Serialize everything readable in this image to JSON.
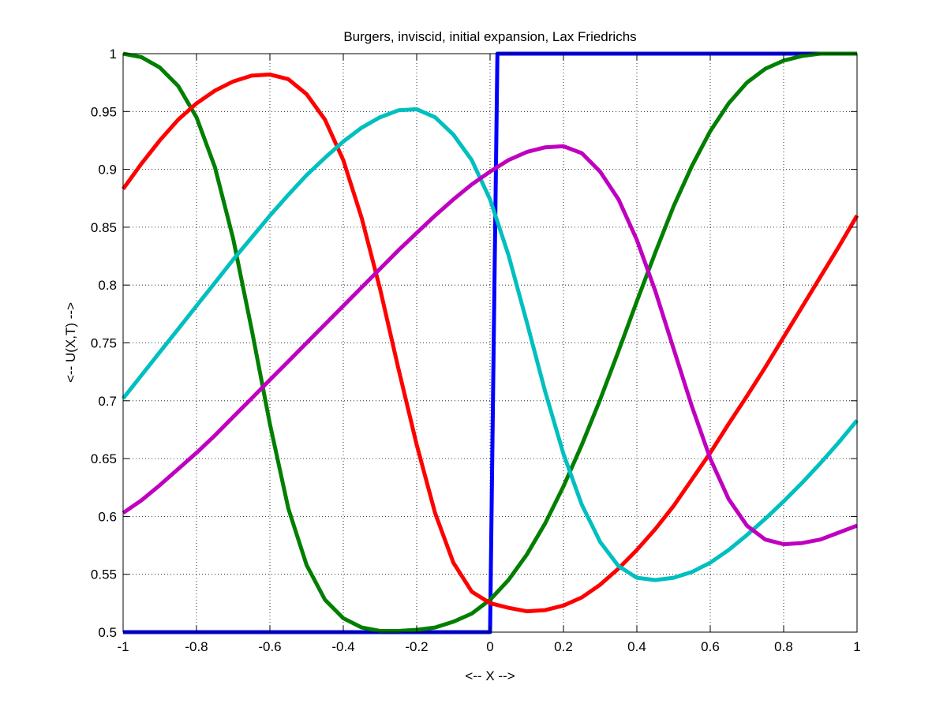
{
  "chart_data": {
    "type": "line",
    "title": "Burgers, inviscid, initial expansion, Lax Friedrichs",
    "xlabel": "<-- X -->",
    "ylabel": "<-- U(X,T) -->",
    "xlim": [
      -1,
      1
    ],
    "ylim": [
      0.5,
      1
    ],
    "xticks": [
      -1,
      -0.8,
      -0.6,
      -0.4,
      -0.2,
      0,
      0.2,
      0.4,
      0.6,
      0.8,
      1
    ],
    "xtick_labels": [
      "-1",
      "-0.8",
      "-0.6",
      "-0.4",
      "-0.2",
      "0",
      "0.2",
      "0.4",
      "0.6",
      "0.8",
      "1"
    ],
    "yticks": [
      0.5,
      0.55,
      0.6,
      0.65,
      0.7,
      0.75,
      0.8,
      0.85,
      0.9,
      0.95,
      1
    ],
    "ytick_labels": [
      "0.5",
      "0.55",
      "0.6",
      "0.65",
      "0.7",
      "0.75",
      "0.8",
      "0.85",
      "0.9",
      "0.95",
      "1"
    ],
    "grid": true,
    "series": [
      {
        "color": "#0000ff",
        "x": [
          -1,
          0,
          0.01,
          0.02,
          1
        ],
        "y": [
          0.5,
          0.5,
          0.75,
          1,
          1
        ]
      },
      {
        "color": "#007f00",
        "x": [
          -1,
          -0.95,
          -0.9,
          -0.85,
          -0.8,
          -0.75,
          -0.7,
          -0.65,
          -0.6,
          -0.55,
          -0.5,
          -0.45,
          -0.4,
          -0.35,
          -0.3,
          -0.25,
          -0.2,
          -0.15,
          -0.1,
          -0.05,
          0,
          0.05,
          0.1,
          0.15,
          0.2,
          0.25,
          0.3,
          0.35,
          0.4,
          0.45,
          0.5,
          0.55,
          0.6,
          0.65,
          0.7,
          0.75,
          0.8,
          0.85,
          0.9,
          0.95,
          1
        ],
        "y": [
          1.0,
          0.997,
          0.988,
          0.972,
          0.945,
          0.902,
          0.84,
          0.762,
          0.68,
          0.607,
          0.558,
          0.528,
          0.512,
          0.504,
          0.501,
          0.501,
          0.502,
          0.504,
          0.509,
          0.516,
          0.528,
          0.545,
          0.567,
          0.594,
          0.626,
          0.662,
          0.701,
          0.743,
          0.786,
          0.828,
          0.868,
          0.903,
          0.933,
          0.957,
          0.975,
          0.987,
          0.994,
          0.998,
          1.0,
          1.0,
          1.0
        ]
      },
      {
        "color": "#ff0000",
        "x": [
          -1,
          -0.95,
          -0.9,
          -0.85,
          -0.8,
          -0.75,
          -0.7,
          -0.65,
          -0.6,
          -0.55,
          -0.5,
          -0.45,
          -0.4,
          -0.35,
          -0.3,
          -0.25,
          -0.2,
          -0.15,
          -0.1,
          -0.05,
          0,
          0.05,
          0.1,
          0.15,
          0.2,
          0.25,
          0.3,
          0.35,
          0.4,
          0.45,
          0.5,
          0.55,
          0.6,
          0.65,
          0.7,
          0.75,
          0.8,
          0.85,
          0.9,
          0.95,
          1
        ],
        "y": [
          0.883,
          0.905,
          0.925,
          0.943,
          0.957,
          0.968,
          0.976,
          0.981,
          0.982,
          0.978,
          0.965,
          0.943,
          0.908,
          0.858,
          0.797,
          0.728,
          0.662,
          0.603,
          0.56,
          0.535,
          0.525,
          0.521,
          0.518,
          0.519,
          0.523,
          0.53,
          0.541,
          0.555,
          0.571,
          0.589,
          0.609,
          0.632,
          0.655,
          0.68,
          0.704,
          0.729,
          0.755,
          0.781,
          0.807,
          0.833,
          0.86
        ]
      },
      {
        "color": "#00bfbf",
        "x": [
          -1,
          -0.95,
          -0.9,
          -0.85,
          -0.8,
          -0.75,
          -0.7,
          -0.65,
          -0.6,
          -0.55,
          -0.5,
          -0.45,
          -0.4,
          -0.35,
          -0.3,
          -0.25,
          -0.2,
          -0.15,
          -0.1,
          -0.05,
          0,
          0.05,
          0.1,
          0.15,
          0.2,
          0.25,
          0.3,
          0.35,
          0.4,
          0.45,
          0.5,
          0.55,
          0.6,
          0.65,
          0.7,
          0.75,
          0.8,
          0.85,
          0.9,
          0.95,
          1
        ],
        "y": [
          0.702,
          0.722,
          0.742,
          0.762,
          0.782,
          0.802,
          0.822,
          0.841,
          0.86,
          0.878,
          0.895,
          0.91,
          0.924,
          0.936,
          0.945,
          0.951,
          0.952,
          0.945,
          0.93,
          0.908,
          0.874,
          0.826,
          0.768,
          0.708,
          0.654,
          0.61,
          0.578,
          0.557,
          0.547,
          0.545,
          0.547,
          0.552,
          0.56,
          0.571,
          0.584,
          0.598,
          0.613,
          0.629,
          0.646,
          0.664,
          0.683
        ]
      },
      {
        "color": "#bf00bf",
        "x": [
          -1,
          -0.95,
          -0.9,
          -0.85,
          -0.8,
          -0.75,
          -0.7,
          -0.65,
          -0.6,
          -0.55,
          -0.5,
          -0.45,
          -0.4,
          -0.35,
          -0.3,
          -0.25,
          -0.2,
          -0.15,
          -0.1,
          -0.05,
          0,
          0.05,
          0.1,
          0.15,
          0.2,
          0.25,
          0.3,
          0.35,
          0.4,
          0.45,
          0.5,
          0.55,
          0.6,
          0.65,
          0.7,
          0.75,
          0.8,
          0.85,
          0.9,
          0.95,
          1
        ],
        "y": [
          0.603,
          0.614,
          0.627,
          0.641,
          0.655,
          0.67,
          0.686,
          0.702,
          0.718,
          0.734,
          0.75,
          0.766,
          0.782,
          0.798,
          0.814,
          0.83,
          0.845,
          0.86,
          0.874,
          0.887,
          0.898,
          0.908,
          0.915,
          0.919,
          0.92,
          0.914,
          0.898,
          0.874,
          0.839,
          0.795,
          0.745,
          0.695,
          0.65,
          0.615,
          0.592,
          0.58,
          0.576,
          0.577,
          0.58,
          0.586,
          0.592
        ]
      }
    ]
  }
}
